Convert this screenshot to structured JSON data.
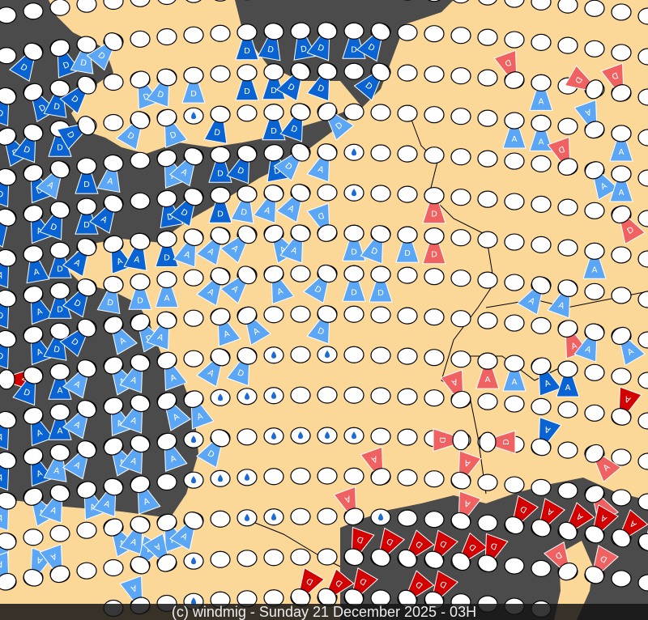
{
  "footer": {
    "credit": "(c) windmig - Sunday 21 December 2025 - 03H"
  },
  "colors": {
    "land": "#fcd898",
    "sea": "#4b4b4b",
    "station": "#ffffff",
    "rain": "#1a6ad8",
    "arrow_dark_blue": "#0a63d3",
    "arrow_light_blue": "#5ca6f6",
    "arrow_dark_red": "#d20000",
    "arrow_light_red": "#f06262"
  },
  "markers": {
    "ascending_label": "A",
    "descending_label": "D"
  },
  "icons": [
    "station-ellipse",
    "raindrop-icon",
    "wind-arrow-icon",
    "snowflake-icon"
  ]
}
